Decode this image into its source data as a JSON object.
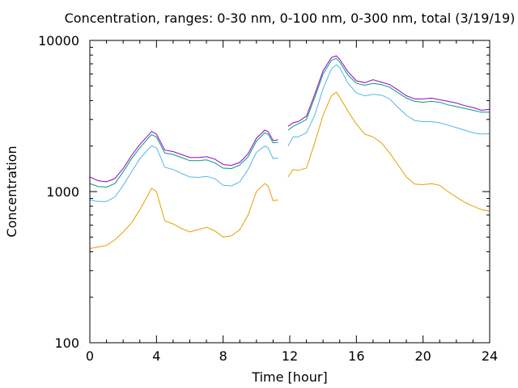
{
  "chart_data": {
    "type": "line",
    "title": "Concentration, ranges: 0-30 nm, 0-100 nm, 0-300 nm, total (3/19/19)",
    "xlabel": "Time [hour]",
    "ylabel": "Concentration",
    "xlim": [
      0,
      24
    ],
    "ylim": [
      100,
      10000
    ],
    "yscale": "log",
    "grid": false,
    "legend": "none",
    "x_ticks": [
      "0",
      "4",
      "8",
      "12",
      "16",
      "20",
      "24"
    ],
    "y_ticks": [
      "100",
      "1000",
      "10000"
    ],
    "x": [
      0,
      0.5,
      1,
      1.5,
      2,
      2.5,
      3,
      3.5,
      3.7,
      4,
      4.5,
      5,
      5.5,
      6,
      6.5,
      7,
      7.5,
      8,
      8.5,
      9,
      9.5,
      10,
      10.5,
      10.7,
      11,
      11.3,
      11.6,
      11.9,
      12.2,
      12.5,
      13,
      13.5,
      14,
      14.5,
      14.8,
      15,
      15.5,
      16,
      16.5,
      17,
      17.5,
      18,
      18.5,
      19,
      19.5,
      20,
      20.5,
      21,
      21.5,
      22,
      22.5,
      23,
      23.5,
      24
    ],
    "series": [
      {
        "color": "#e69f00",
        "values": [
          420,
          430,
          440,
          480,
          540,
          620,
          760,
          950,
          1050,
          1000,
          640,
          610,
          570,
          540,
          560,
          580,
          550,
          500,
          510,
          560,
          700,
          1000,
          1130,
          1090,
          870,
          880,
          null,
          1250,
          1400,
          1380,
          1430,
          2100,
          3200,
          4300,
          4550,
          4200,
          3400,
          2800,
          2400,
          2300,
          2100,
          1800,
          1500,
          1250,
          1120,
          1110,
          1130,
          1100,
          1000,
          920,
          850,
          800,
          760,
          740
        ]
      },
      {
        "color": "#56b4e9",
        "values": [
          880,
          860,
          860,
          920,
          1100,
          1350,
          1650,
          1900,
          2000,
          1950,
          1450,
          1400,
          1320,
          1250,
          1240,
          1260,
          1220,
          1100,
          1090,
          1160,
          1400,
          1820,
          2000,
          1950,
          1650,
          1670,
          null,
          2000,
          2300,
          2300,
          2450,
          3200,
          4800,
          6500,
          6900,
          6600,
          5200,
          4500,
          4300,
          4400,
          4350,
          4100,
          3600,
          3200,
          2950,
          2900,
          2900,
          2850,
          2750,
          2650,
          2550,
          2450,
          2400,
          2420
        ]
      },
      {
        "color": "#009e73",
        "values": [
          1130,
          1080,
          1070,
          1130,
          1350,
          1650,
          1950,
          2250,
          2380,
          2300,
          1800,
          1760,
          1680,
          1600,
          1600,
          1620,
          1550,
          1430,
          1420,
          1500,
          1700,
          2150,
          2450,
          2400,
          2100,
          2120,
          null,
          2550,
          2700,
          2800,
          3000,
          4200,
          6000,
          7400,
          7600,
          7200,
          5900,
          5200,
          5050,
          5200,
          5100,
          4900,
          4500,
          4150,
          3950,
          3900,
          3950,
          3900,
          3750,
          3650,
          3550,
          3450,
          3350,
          3350
        ]
      },
      {
        "color": "#9400d3",
        "values": [
          1250,
          1180,
          1160,
          1220,
          1420,
          1730,
          2050,
          2350,
          2500,
          2400,
          1880,
          1840,
          1760,
          1680,
          1680,
          1700,
          1640,
          1510,
          1490,
          1560,
          1780,
          2250,
          2550,
          2500,
          2180,
          2200,
          null,
          2700,
          2850,
          2900,
          3150,
          4400,
          6300,
          7700,
          7900,
          7500,
          6200,
          5400,
          5250,
          5500,
          5300,
          5100,
          4700,
          4300,
          4100,
          4100,
          4150,
          4050,
          3950,
          3850,
          3700,
          3600,
          3450,
          3500
        ]
      }
    ]
  }
}
